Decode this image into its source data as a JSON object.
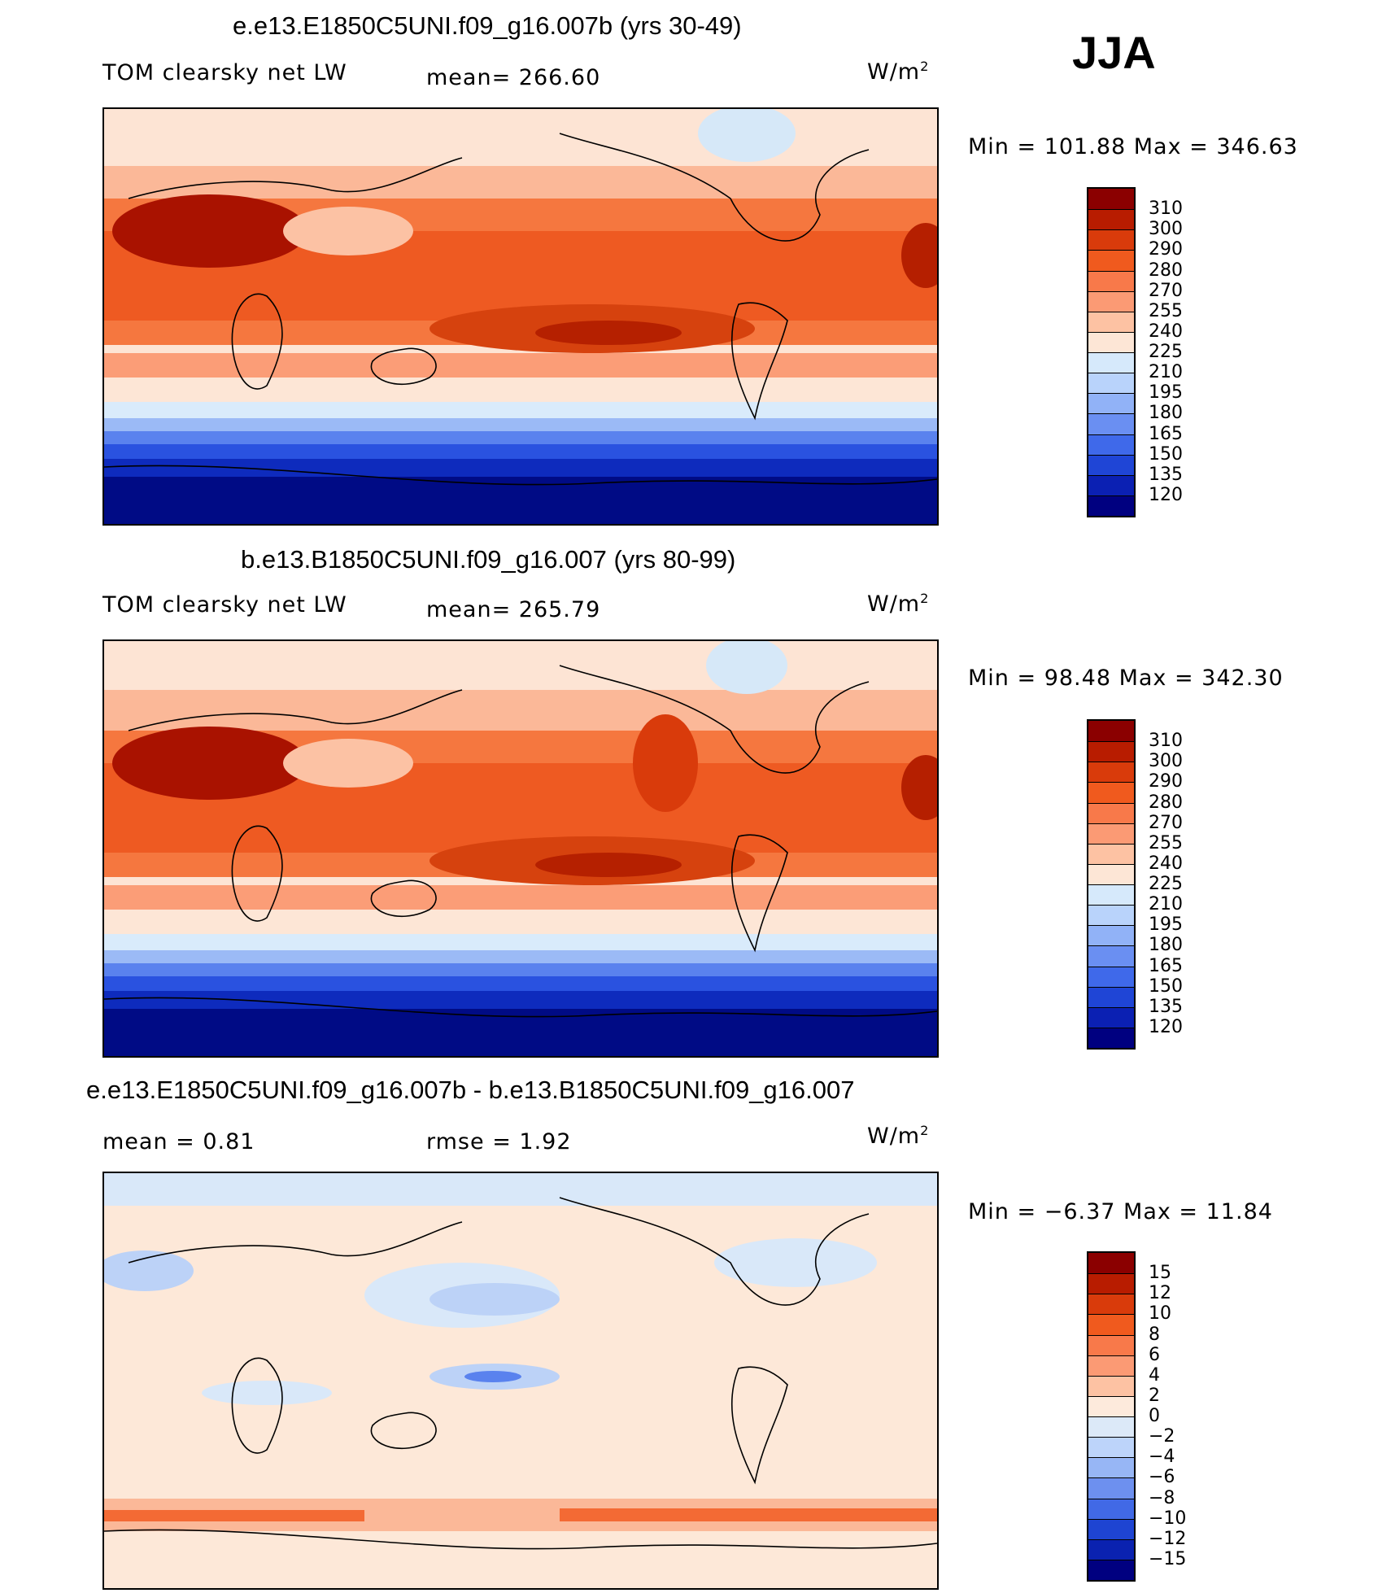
{
  "season": "JJA",
  "panels": [
    {
      "title": "e.e13.E1850C5UNI.f09_g16.007b (yrs 30-49)",
      "variable": "TOM clearsky net LW",
      "stat_text": "mean=  266.60",
      "units": "W/m",
      "units_sup": "2",
      "minmax": "Min  =  101.88  Max  =  346.63",
      "colorbar_labels": [
        "310",
        "300",
        "290",
        "280",
        "270",
        "255",
        "240",
        "225",
        "210",
        "195",
        "180",
        "165",
        "150",
        "135",
        "120"
      ],
      "colorbar_colors": [
        "#8b0000",
        "#b81c00",
        "#d93b0b",
        "#f05a1e",
        "#f8794a",
        "#fb9a74",
        "#fdc2a3",
        "#fde6d6",
        "#d6e9fb",
        "#b9d3fb",
        "#91b2f7",
        "#6a8ff2",
        "#3f69ea",
        "#1f45d6",
        "#0b20b3",
        "#000080"
      ]
    },
    {
      "title": "b.e13.B1850C5UNI.f09_g16.007 (yrs 80-99)",
      "variable": "TOM clearsky net LW",
      "stat_text": "mean=  265.79",
      "units": "W/m",
      "units_sup": "2",
      "minmax": "Min  =    98.48  Max  =  342.30",
      "colorbar_labels": [
        "310",
        "300",
        "290",
        "280",
        "270",
        "255",
        "240",
        "225",
        "210",
        "195",
        "180",
        "165",
        "150",
        "135",
        "120"
      ],
      "colorbar_colors": [
        "#8b0000",
        "#b81c00",
        "#d93b0b",
        "#f05a1e",
        "#f8794a",
        "#fb9a74",
        "#fdc2a3",
        "#fde6d6",
        "#d6e9fb",
        "#b9d3fb",
        "#91b2f7",
        "#6a8ff2",
        "#3f69ea",
        "#1f45d6",
        "#0b20b3",
        "#000080"
      ]
    },
    {
      "title": "e.e13.E1850C5UNI.f09_g16.007b - b.e13.B1850C5UNI.f09_g16.007",
      "mean_text": "mean  =     0.81",
      "rmse_text": "rmse  =      1.92",
      "units": "W/m",
      "units_sup": "2",
      "minmax": "Min  =    −6.37  Max  =     11.84",
      "colorbar_labels": [
        "15",
        "12",
        "10",
        "8",
        "6",
        "4",
        "2",
        "0",
        "−2",
        "−4",
        "−6",
        "−8",
        "−10",
        "−12",
        "−15"
      ],
      "colorbar_colors": [
        "#8b0000",
        "#b81c00",
        "#d93b0b",
        "#f05a1e",
        "#f8794a",
        "#fb9a74",
        "#fdc2a3",
        "#fdeadc",
        "#dce9f8",
        "#bdd4fa",
        "#97b6f5",
        "#6d90ef",
        "#4169e6",
        "#1e44d2",
        "#0a22b0",
        "#000080"
      ]
    }
  ]
}
